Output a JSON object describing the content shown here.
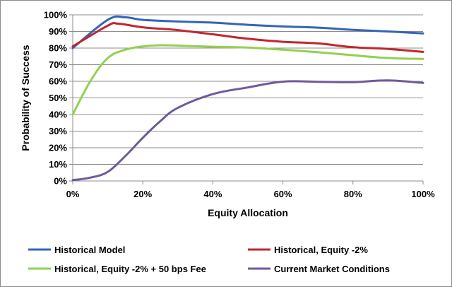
{
  "chart_data": {
    "type": "line",
    "title": "",
    "xlabel": "Equity Allocation",
    "ylabel": "Probability of Success",
    "xlim": [
      0,
      100
    ],
    "ylim": [
      0,
      100
    ],
    "x_ticks": [
      0,
      20,
      40,
      60,
      80,
      100
    ],
    "x_tick_labels": [
      "0%",
      "20%",
      "40%",
      "60%",
      "80%",
      "100%"
    ],
    "y_ticks": [
      0,
      10,
      20,
      30,
      40,
      50,
      60,
      70,
      80,
      90,
      100
    ],
    "y_tick_labels": [
      "0%",
      "10%",
      "20%",
      "30%",
      "40%",
      "50%",
      "60%",
      "70%",
      "80%",
      "90%",
      "100%"
    ],
    "grid": "horizontal",
    "legend_position": "bottom",
    "series": [
      {
        "name": "Historical Model",
        "color": "#3465b8",
        "x": [
          0,
          10,
          15,
          20,
          30,
          40,
          50,
          60,
          70,
          80,
          90,
          100
        ],
        "y": [
          80,
          97,
          98.5,
          97,
          96,
          95.3,
          94,
          93,
          92.3,
          91,
          90,
          88.8
        ]
      },
      {
        "name": "Historical, Equity -2%",
        "color": "#c0272d",
        "x": [
          0,
          10,
          13,
          20,
          30,
          40,
          50,
          60,
          70,
          80,
          90,
          100
        ],
        "y": [
          81,
          93.5,
          94.7,
          92.5,
          90.8,
          88.3,
          85.6,
          83.8,
          82.8,
          80.5,
          79.5,
          77.7
        ]
      },
      {
        "name": "Historical, Equity -2% + 50 bps Fee",
        "color": "#92d050",
        "x": [
          0,
          5,
          10,
          15,
          20,
          25,
          30,
          40,
          50,
          60,
          70,
          80,
          90,
          100
        ],
        "y": [
          40,
          60,
          74,
          79,
          81,
          81.7,
          81.5,
          80.8,
          80.3,
          79,
          77.5,
          75.7,
          74,
          73.5
        ]
      },
      {
        "name": "Current Market Conditions",
        "color": "#6f5a9c",
        "x": [
          0,
          5,
          10,
          15,
          20,
          25,
          30,
          40,
          50,
          60,
          70,
          80,
          90,
          100
        ],
        "y": [
          0.5,
          2,
          5.5,
          15,
          26,
          36,
          44,
          52.3,
          56.3,
          59.8,
          59.7,
          59.5,
          60.5,
          59
        ]
      }
    ]
  }
}
